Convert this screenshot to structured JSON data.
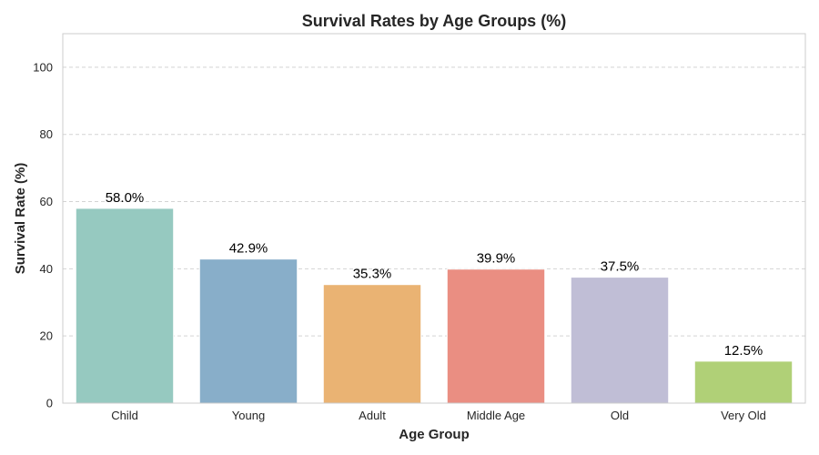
{
  "chart_data": {
    "type": "bar",
    "title": "Survival Rates by Age Groups (%)",
    "xlabel": "Age Group",
    "ylabel": "Survival Rate (%)",
    "categories": [
      "Child",
      "Young",
      "Adult",
      "Middle Age",
      "Old",
      "Very Old"
    ],
    "values": [
      58.0,
      42.9,
      35.3,
      39.9,
      37.5,
      12.5
    ],
    "data_labels": [
      "58.0%",
      "42.9%",
      "35.3%",
      "39.9%",
      "37.5%",
      "12.5%"
    ],
    "colors": [
      "#96c9c0",
      "#88aec9",
      "#eab373",
      "#ea8e82",
      "#c0bed6",
      "#b0d077"
    ],
    "ylim": [
      0,
      110
    ],
    "yticks": [
      0,
      20,
      40,
      60,
      80,
      100
    ],
    "grid": true,
    "legend": "none"
  }
}
